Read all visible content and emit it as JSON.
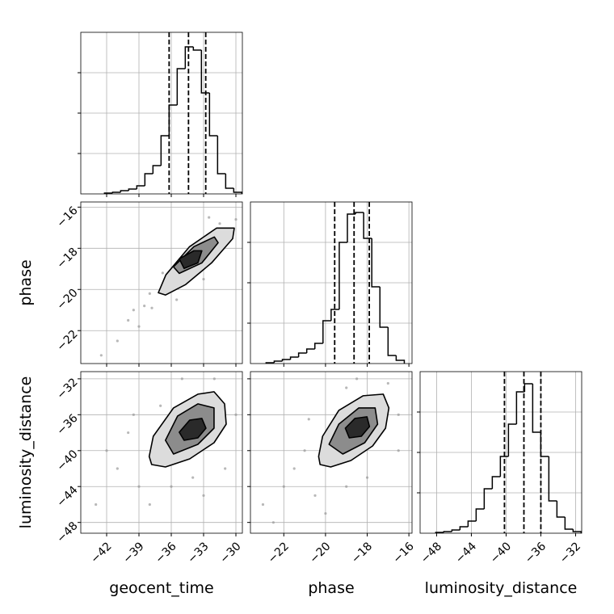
{
  "chart_data": [
    {
      "type": "histogram",
      "color": "#000000",
      "grid": true,
      "bins": [
        -42.2,
        -41.45,
        -40.7,
        -39.95,
        -39.2,
        -38.45,
        -37.7,
        -36.95,
        -36.2,
        -35.45,
        -34.7,
        -33.95,
        -33.2,
        -32.45,
        -31.7,
        -30.95,
        -30.2,
        -29.45
      ],
      "values": [
        10,
        20,
        40,
        60,
        100,
        250,
        350,
        720,
        1100,
        1550,
        1820,
        1780,
        1250,
        720,
        250,
        70,
        20
      ],
      "quantiles": [
        -36.2,
        -34.4,
        -32.8
      ],
      "xlim": [
        -44.4,
        -29.4
      ],
      "ylim": [
        0,
        2000
      ],
      "xticks": [
        -42,
        -39,
        -36,
        -33,
        -30
      ],
      "yticks": [
        500,
        1000,
        1500
      ]
    },
    {
      "type": "scatter",
      "color": "#000000",
      "point_color": "#9a9a9a",
      "grid": true,
      "fills": [
        "#dcdcdc",
        "#8c8c8c",
        "#2a2a2a"
      ],
      "ylabel": "phase",
      "x": [
        -40,
        -39.5,
        -41,
        -38.5,
        -38,
        -37.8,
        -36.8,
        -33,
        -31,
        -30,
        -31.5,
        -35.5,
        -42.5,
        -39,
        -32.5
      ],
      "y": [
        -21.5,
        -21,
        -22.5,
        -20.8,
        -20.2,
        -20.9,
        -19.2,
        -19.5,
        -17.5,
        -16.6,
        -16.8,
        -20.5,
        -23.2,
        -21.8,
        -16.5
      ],
      "contours": [
        {
          "x": [
            -37.2,
            -36.5,
            -34.3,
            -31.8,
            -30.15,
            -30.3,
            -32.26,
            -34.66,
            -36.54
          ],
          "y": [
            -20.16,
            -19.29,
            -17.92,
            -17.02,
            -17.02,
            -17.53,
            -18.71,
            -19.76,
            -20.27
          ]
        },
        {
          "x": [
            -35.8,
            -33.9,
            -32.0,
            -31.65,
            -33.16,
            -35.26
          ],
          "y": [
            -18.9,
            -17.92,
            -17.45,
            -17.73,
            -18.71,
            -19.22
          ]
        },
        {
          "x": [
            -35.26,
            -33.9,
            -33.16,
            -33.53,
            -34.81
          ],
          "y": [
            -18.51,
            -18.12,
            -18.12,
            -18.71,
            -18.98
          ]
        }
      ],
      "xlim": [
        -44.4,
        -29.4
      ],
      "ylim": [
        -23.6,
        -15.75
      ],
      "xticks": [
        -42,
        -39,
        -36,
        -33,
        -30
      ],
      "yticks": [
        {
          "value": -22,
          "label": "−22"
        },
        {
          "value": -20,
          "label": "−20"
        },
        {
          "value": -18,
          "label": "−18"
        },
        {
          "value": -16,
          "label": "−16"
        }
      ]
    },
    {
      "type": "histogram",
      "color": "#000000",
      "grid": true,
      "bins": [
        -22.85,
        -22.46,
        -22.07,
        -21.68,
        -21.29,
        -20.9,
        -20.51,
        -20.12,
        -19.73,
        -19.34,
        -18.95,
        -18.56,
        -18.17,
        -17.78,
        -17.39,
        -17.0,
        -16.61,
        -16.22
      ],
      "values": [
        10,
        30,
        50,
        80,
        130,
        180,
        250,
        530,
        670,
        1500,
        1850,
        1870,
        1550,
        950,
        450,
        100,
        40
      ],
      "quantiles": [
        -19.56,
        -18.63,
        -17.9
      ],
      "xlim": [
        -23.6,
        -15.85
      ],
      "ylim": [
        0,
        2000
      ],
      "xticks": [
        -22,
        -20,
        -18,
        -16
      ],
      "yticks": [
        500,
        1000,
        1500
      ]
    },
    {
      "type": "scatter",
      "color": "#000000",
      "point_color": "#9a9a9a",
      "grid": true,
      "fills": [
        "#dcdcdc",
        "#8c8c8c",
        "#2a2a2a"
      ],
      "xlabel": "geocent_time",
      "ylabel": "luminosity_distance",
      "x": [
        -40,
        -41,
        -39,
        -38,
        -36,
        -34,
        -31,
        -30,
        -32,
        -35,
        -37,
        -42,
        -39.5,
        -33,
        -43
      ],
      "y": [
        -38,
        -42,
        -44,
        -46,
        -44,
        -43,
        -42,
        -36,
        -32,
        -32,
        -35,
        -40,
        -36,
        -45,
        -46
      ],
      "contours": [
        {
          "x": [
            -38.05,
            -37.67,
            -35.79,
            -33.53,
            -32.03,
            -31.05,
            -30.9,
            -32.03,
            -34.29,
            -36.54,
            -37.82
          ],
          "y": [
            -40.65,
            -38.4,
            -35.24,
            -33.71,
            -33.44,
            -34.79,
            -37.05,
            -39.12,
            -40.92,
            -41.82,
            -41.55
          ]
        },
        {
          "x": [
            -36.54,
            -35.41,
            -33.53,
            -32.03,
            -32.03,
            -33.53,
            -35.79
          ],
          "y": [
            -38.85,
            -36.14,
            -34.79,
            -35.24,
            -37.5,
            -39.3,
            -40.38
          ]
        },
        {
          "x": [
            -35.26,
            -34.29,
            -33.16,
            -32.78,
            -33.53,
            -34.81
          ],
          "y": [
            -37.95,
            -36.6,
            -36.41,
            -37.5,
            -38.58,
            -38.85
          ]
        }
      ],
      "xlim": [
        -44.4,
        -29.4
      ],
      "ylim": [
        -49.2,
        -31.2
      ],
      "xticks": [
        {
          "value": -42,
          "label": "−42"
        },
        {
          "value": -39,
          "label": "−39"
        },
        {
          "value": -36,
          "label": "−36"
        },
        {
          "value": -33,
          "label": "−33"
        },
        {
          "value": -30,
          "label": "−30"
        }
      ],
      "yticks": [
        {
          "value": -48,
          "label": "−48"
        },
        {
          "value": -44,
          "label": "−44"
        },
        {
          "value": -40,
          "label": "−40"
        },
        {
          "value": -36,
          "label": "−36"
        },
        {
          "value": -32,
          "label": "−32"
        }
      ]
    },
    {
      "type": "scatter",
      "color": "#000000",
      "point_color": "#9a9a9a",
      "grid": true,
      "fills": [
        "#dcdcdc",
        "#8c8c8c",
        "#2a2a2a"
      ],
      "xlabel": "phase",
      "x": [
        -21,
        -22,
        -21.5,
        -20.5,
        -19,
        -18,
        -16.5,
        -16.5,
        -17,
        -19,
        -20.8,
        -23,
        -22.5,
        -20,
        -18.5
      ],
      "y": [
        -40,
        -44,
        -42,
        -45,
        -44,
        -43,
        -40,
        -36,
        -32.5,
        -33,
        -36.5,
        -46,
        -48,
        -47,
        -32
      ],
      "contours": [
        {
          "x": [
            -20.33,
            -20.14,
            -19.36,
            -18.2,
            -17.23,
            -16.96,
            -17.12,
            -17.74,
            -18.78,
            -19.75,
            -20.26
          ],
          "y": [
            -40.65,
            -38.4,
            -35.51,
            -33.89,
            -33.71,
            -35.24,
            -37.5,
            -39.48,
            -41.1,
            -41.82,
            -41.55
          ]
        },
        {
          "x": [
            -19.83,
            -19.36,
            -18.4,
            -17.62,
            -17.5,
            -18.12,
            -19.17
          ],
          "y": [
            -39.3,
            -37.05,
            -35.24,
            -35.24,
            -37.05,
            -39.12,
            -40.38
          ]
        },
        {
          "x": [
            -19.05,
            -18.59,
            -18.01,
            -17.89,
            -18.28,
            -18.86
          ],
          "y": [
            -37.5,
            -36.41,
            -36.23,
            -37.32,
            -38.4,
            -38.58
          ]
        }
      ],
      "xlim": [
        -23.6,
        -15.85
      ],
      "ylim": [
        -49.2,
        -31.2
      ],
      "xticks": [
        {
          "value": -22,
          "label": "−22"
        },
        {
          "value": -20,
          "label": "−20"
        },
        {
          "value": -18,
          "label": "−18"
        },
        {
          "value": -16,
          "label": "−16"
        }
      ],
      "yticks": [
        -48,
        -44,
        -40,
        -36,
        -32
      ]
    },
    {
      "type": "histogram",
      "color": "#000000",
      "grid": true,
      "xlabel": "luminosity_distance",
      "bins": [
        -48.1,
        -47.17,
        -46.24,
        -45.31,
        -44.38,
        -43.45,
        -42.52,
        -41.59,
        -40.66,
        -39.73,
        -38.8,
        -37.87,
        -36.94,
        -36.01,
        -35.08,
        -34.15,
        -33.22,
        -32.29,
        -31.36
      ],
      "values": [
        10,
        20,
        40,
        80,
        150,
        300,
        550,
        700,
        950,
        1350,
        1750,
        1850,
        1250,
        950,
        400,
        200,
        50,
        20
      ],
      "quantiles": [
        -40.19,
        -37.95,
        -36.0
      ],
      "xlim": [
        -49.9,
        -31.3
      ],
      "ylim": [
        0,
        2000
      ],
      "xticks": [
        {
          "value": -48,
          "label": "−48"
        },
        {
          "value": -44,
          "label": "−44"
        },
        {
          "value": -40,
          "label": "−40"
        },
        {
          "value": -36,
          "label": "−36"
        },
        {
          "value": -32,
          "label": "−32"
        }
      ],
      "yticks": [
        500,
        1000,
        1500
      ]
    }
  ]
}
